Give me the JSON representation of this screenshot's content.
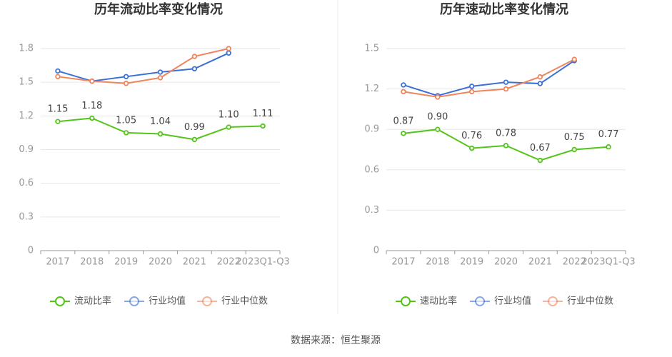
{
  "chart_data": [
    {
      "type": "line",
      "title": "历年流动比率变化情况",
      "categories": [
        "2017",
        "2018",
        "2019",
        "2020",
        "2021",
        "2022",
        "2023Q1-Q3"
      ],
      "series": [
        {
          "name": "流动比率",
          "color": "#52c41a",
          "values": [
            1.15,
            1.18,
            1.05,
            1.04,
            0.99,
            1.1,
            1.11
          ],
          "value_labels": [
            "1.15",
            "1.18",
            "1.05",
            "1.04",
            "0.99",
            "1.10",
            "1.11"
          ]
        },
        {
          "name": "行业均值",
          "color": "#3b6fd6",
          "values": [
            1.6,
            1.51,
            1.55,
            1.59,
            1.62,
            1.76,
            null
          ]
        },
        {
          "name": "行业中位数",
          "color": "#f0845c",
          "values": [
            1.55,
            1.51,
            1.49,
            1.54,
            1.73,
            1.8,
            null
          ]
        }
      ],
      "ylim": [
        0,
        1.8
      ],
      "yticks": [
        0,
        0.3,
        0.6,
        0.9,
        1.2,
        1.5,
        1.8
      ],
      "grid": true,
      "legend": "bottom"
    },
    {
      "type": "line",
      "title": "历年速动比率变化情况",
      "categories": [
        "2017",
        "2018",
        "2019",
        "2020",
        "2021",
        "2022",
        "2023Q1-Q3"
      ],
      "series": [
        {
          "name": "速动比率",
          "color": "#52c41a",
          "values": [
            0.87,
            0.9,
            0.76,
            0.78,
            0.67,
            0.75,
            0.77
          ],
          "value_labels": [
            "0.87",
            "0.90",
            "0.76",
            "0.78",
            "0.67",
            "0.75",
            "0.77"
          ]
        },
        {
          "name": "行业均值",
          "color": "#3b6fd6",
          "values": [
            1.23,
            1.15,
            1.22,
            1.25,
            1.24,
            1.41,
            null
          ]
        },
        {
          "name": "行业中位数",
          "color": "#f0845c",
          "values": [
            1.18,
            1.14,
            1.18,
            1.2,
            1.29,
            1.42,
            null
          ]
        }
      ],
      "ylim": [
        0,
        1.5
      ],
      "yticks": [
        0,
        0.3,
        0.6,
        0.9,
        1.2,
        1.5
      ],
      "grid": true,
      "legend": "bottom"
    }
  ],
  "source": "数据来源：恒生聚源"
}
